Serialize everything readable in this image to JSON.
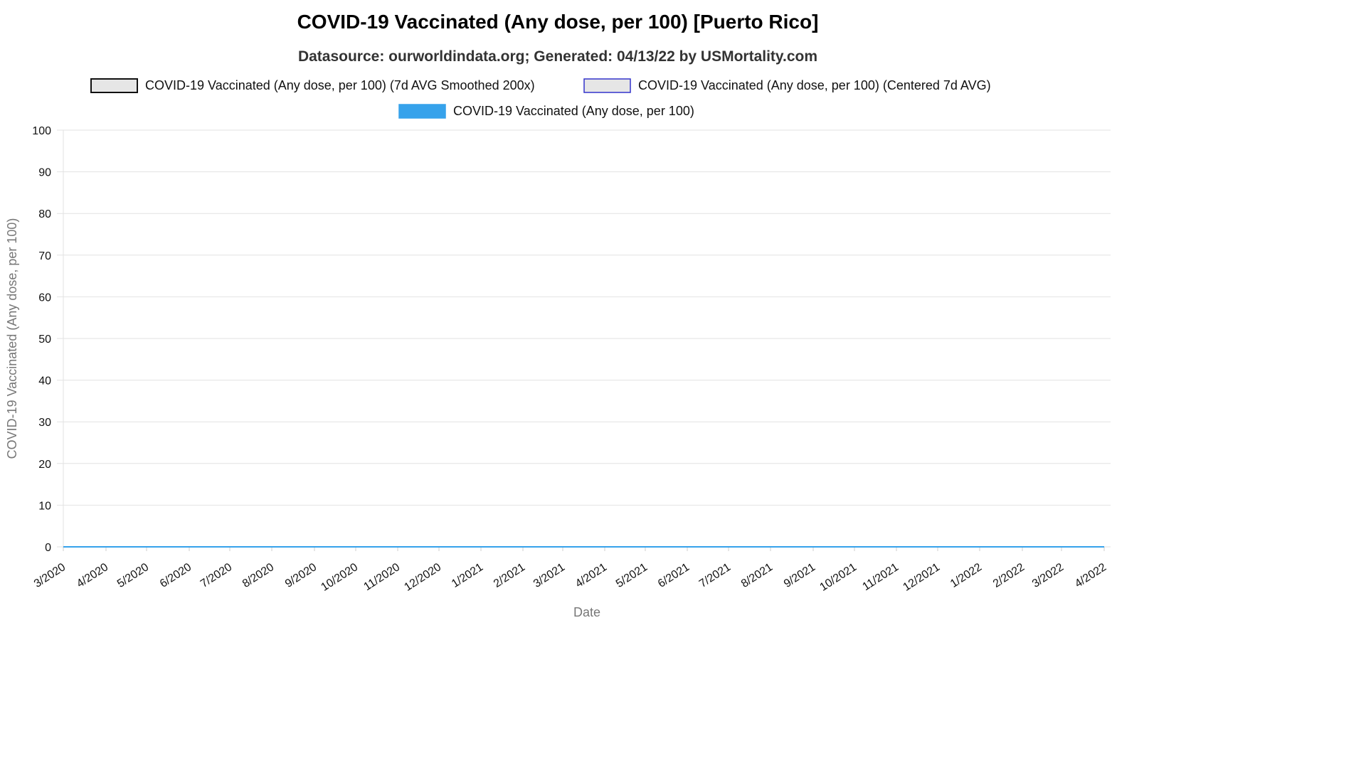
{
  "chart_data": {
    "type": "line",
    "title": "COVID-19 Vaccinated (Any dose, per 100) [Puerto Rico]",
    "subtitle": "Datasource: ourworldindata.org; Generated: 04/13/22 by USMortality.com",
    "xlabel": "Date",
    "ylabel": "COVID-19 Vaccinated (Any dose, per 100)",
    "ylim": [
      0,
      100
    ],
    "yticks": [
      0,
      10,
      20,
      30,
      40,
      50,
      60,
      70,
      80,
      90,
      100
    ],
    "x_ticks": [
      "3/2020",
      "4/2020",
      "5/2020",
      "6/2020",
      "7/2020",
      "8/2020",
      "9/2020",
      "10/2020",
      "11/2020",
      "12/2020",
      "1/2021",
      "2/2021",
      "3/2021",
      "4/2021",
      "5/2021",
      "6/2021",
      "7/2021",
      "8/2021",
      "9/2021",
      "10/2021",
      "11/2021",
      "12/2021",
      "1/2022",
      "2/2022",
      "3/2022",
      "4/2022"
    ],
    "grid": true,
    "legend_placement": "top",
    "series": [
      {
        "name": "COVID-19 Vaccinated (Any dose, per 100) (7d AVG Smoothed 200x)",
        "swatch_fill": "#e6e6e6",
        "swatch_border": "#111111",
        "line_color": "#111111",
        "x": [
          "3/2020",
          "4/2022"
        ],
        "values": [
          0,
          0
        ]
      },
      {
        "name": "COVID-19 Vaccinated (Any dose, per 100) (Centered 7d AVG)",
        "swatch_fill": "#e6e6e6",
        "swatch_border": "#3333cc",
        "line_color": "#3333cc",
        "x": [
          "3/2020",
          "4/2022"
        ],
        "values": [
          0,
          0
        ]
      },
      {
        "name": "COVID-19 Vaccinated (Any dose, per 100)",
        "swatch_fill": "#36a2eb",
        "swatch_border": "#36a2eb",
        "line_color": "#36a2eb",
        "x": [
          "3/2020",
          "4/2022"
        ],
        "values": [
          0,
          0
        ]
      }
    ]
  }
}
